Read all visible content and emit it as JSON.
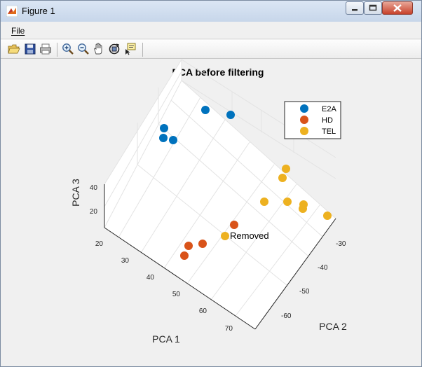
{
  "window": {
    "title": "Figure 1"
  },
  "menu": {
    "file": "File"
  },
  "toolbar": {
    "icons": [
      "open-icon",
      "save-icon",
      "print-icon",
      "zoom-in-icon",
      "zoom-out-icon",
      "pan-icon",
      "rotate-3d-icon",
      "data-cursor-icon"
    ]
  },
  "plot": {
    "title": "PCA before filtering",
    "xlabel": "PCA 1",
    "ylabel": "PCA 2",
    "zlabel": "PCA 3",
    "annotation": "Removed"
  },
  "chart_data": {
    "type": "scatter",
    "title": "PCA before filtering",
    "xlabel": "PCA 1",
    "ylabel": "PCA 2",
    "zlabel": "PCA 3",
    "x_ticks": [
      20,
      30,
      40,
      50,
      60,
      70
    ],
    "y_ticks": [
      -30,
      -40,
      -50,
      -60
    ],
    "z_ticks": [
      20,
      40
    ],
    "grid": true,
    "legend": "top-right",
    "series": [
      {
        "name": "E2A",
        "color": "#0072bd"
      },
      {
        "name": "HD",
        "color": "#d95319"
      },
      {
        "name": "TEL",
        "color": "#edb120"
      }
    ],
    "annotations": [
      "Removed"
    ]
  }
}
